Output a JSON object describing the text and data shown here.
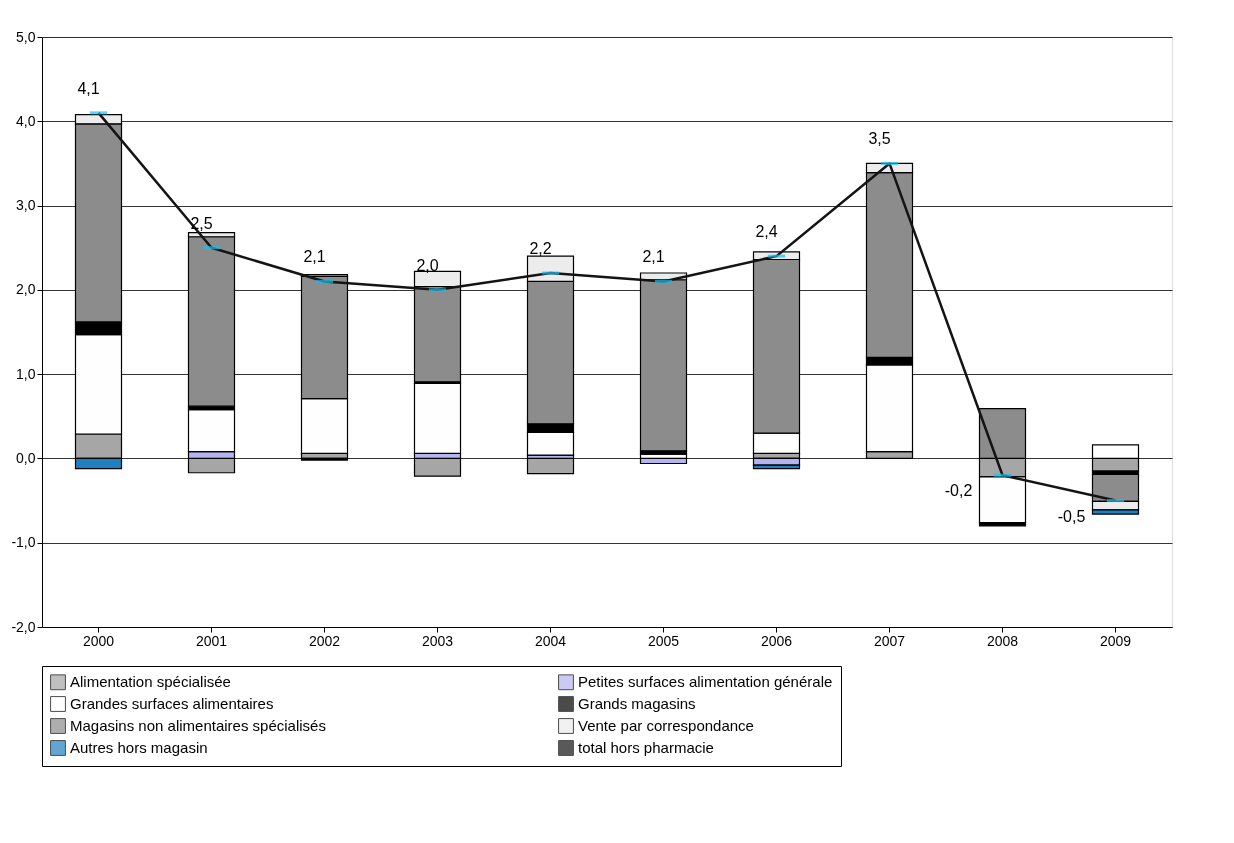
{
  "chart_data": {
    "type": "bar",
    "stacked": true,
    "categories": [
      "2000",
      "2001",
      "2002",
      "2003",
      "2004",
      "2005",
      "2006",
      "2007",
      "2008",
      "2009"
    ],
    "series": [
      {
        "name": "Alimentation spécialisée",
        "color": "#a6a6a6",
        "values": [
          0.29,
          -0.17,
          0.06,
          -0.21,
          -0.18,
          null,
          0.06,
          0.08,
          -0.22,
          -0.15
        ]
      },
      {
        "name": "Petites surfaces alimentation générale",
        "color": "#b4b4f0",
        "values": [
          null,
          0.08,
          null,
          0.06,
          0.04,
          -0.06,
          -0.08,
          null,
          null,
          null
        ]
      },
      {
        "name": "Grandes surfaces alimentaires",
        "color": "#fefefe",
        "values": [
          1.18,
          0.5,
          0.65,
          0.83,
          0.27,
          0.05,
          0.24,
          1.03,
          -0.54,
          0.16
        ]
      },
      {
        "name": "Grands magasins",
        "color": "#000000",
        "values": [
          0.15,
          0.04,
          -0.02,
          0.02,
          0.1,
          0.04,
          null,
          0.09,
          -0.04,
          -0.04
        ]
      },
      {
        "name": "Magasins non alimentaires spécialisés",
        "color": "#8c8c8c",
        "values": [
          2.35,
          2.01,
          1.45,
          1.13,
          1.69,
          2.03,
          2.06,
          2.19,
          0.59,
          -0.32
        ]
      },
      {
        "name": "Vente par correspondance",
        "color": "#ececec",
        "values": [
          0.11,
          0.05,
          0.02,
          0.18,
          0.3,
          0.08,
          0.09,
          0.11,
          null,
          -0.1
        ]
      },
      {
        "name": "Autres hors magasin",
        "color": "#1f7fc0",
        "values": [
          -0.12,
          null,
          null,
          null,
          null,
          null,
          -0.04,
          null,
          null,
          -0.05
        ]
      },
      {
        "name": "total hors pharmacie",
        "type": "line",
        "color": "#141414",
        "values": [
          4.1,
          2.5,
          2.1,
          2.0,
          2.2,
          2.1,
          2.4,
          3.5,
          -0.2,
          -0.5
        ],
        "value_labels": [
          "4,1",
          "2,5",
          "2,1",
          "2,0",
          "2,2",
          "2,1",
          "2,4",
          "3,5",
          "-0,2",
          "-0,5"
        ]
      }
    ],
    "ylim": [
      -2,
      5
    ],
    "yticks": [
      {
        "value": -2,
        "label": "-2,0"
      },
      {
        "value": -1,
        "label": "-1,0"
      },
      {
        "value": 0,
        "label": "0,0"
      },
      {
        "value": 1,
        "label": "1,0"
      },
      {
        "value": 2,
        "label": "2,0"
      },
      {
        "value": 3,
        "label": "3,0"
      },
      {
        "value": 4,
        "label": "4,0"
      },
      {
        "value": 5,
        "label": "5,0"
      }
    ],
    "grid": "y",
    "legend": "bottom"
  }
}
